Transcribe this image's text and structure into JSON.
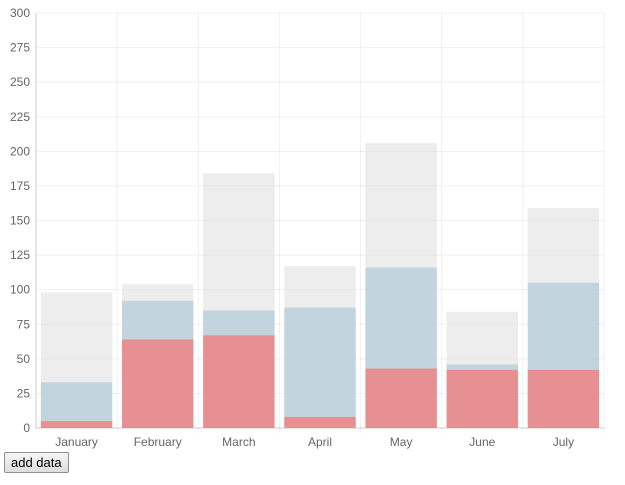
{
  "chart_data": {
    "type": "bar",
    "stacked": false,
    "categories": [
      "January",
      "February",
      "March",
      "April",
      "May",
      "June",
      "July"
    ],
    "series": [
      {
        "color": "rgba(255,99,99,0.6)",
        "values": [
          5,
          64,
          67,
          8,
          43,
          42,
          42
        ]
      },
      {
        "color": "rgba(151,187,205,0.5)",
        "values": [
          33,
          92,
          85,
          87,
          116,
          46,
          105
        ]
      },
      {
        "color": "rgba(220,220,220,0.5)",
        "values": [
          98,
          104,
          184,
          117,
          206,
          84,
          159
        ]
      }
    ],
    "ylim": [
      0,
      300
    ],
    "yticks": [
      0,
      25,
      50,
      75,
      100,
      125,
      150,
      175,
      200,
      225,
      250,
      275,
      300
    ],
    "grid": true,
    "legend": "none"
  },
  "controls": {
    "add_data_label": "add data"
  }
}
